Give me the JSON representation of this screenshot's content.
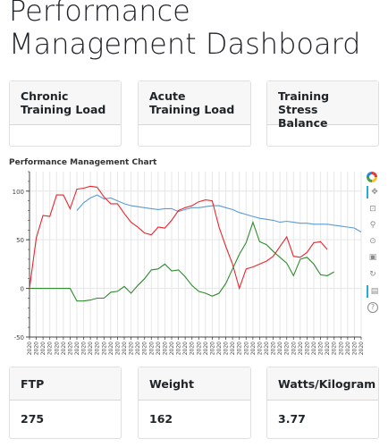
{
  "page": {
    "title": "Performance Management Dashboard"
  },
  "metrics_top": [
    {
      "label": "Chronic Training Load",
      "value": ""
    },
    {
      "label": "Acute Training Load",
      "value": ""
    },
    {
      "label": "Training Stress Balance",
      "value": ""
    }
  ],
  "metrics_bottom": [
    {
      "label": "FTP",
      "value": "275"
    },
    {
      "label": "Weight",
      "value": "162"
    },
    {
      "label": "Watts/Kilogram",
      "value": "3.77"
    }
  ],
  "chart": {
    "title": "Performance Management Chart"
  },
  "toolbar": {
    "tools": [
      {
        "name": "bokeh-logo-icon",
        "glyph": ""
      },
      {
        "name": "pan-tool-icon",
        "glyph": "✥"
      },
      {
        "name": "box-zoom-icon",
        "glyph": "⊡"
      },
      {
        "name": "lasso-icon",
        "glyph": "⚲"
      },
      {
        "name": "wheel-zoom-icon",
        "glyph": "⊙"
      },
      {
        "name": "save-icon",
        "glyph": "▣"
      },
      {
        "name": "reset-icon",
        "glyph": "↻"
      },
      {
        "name": "hover-icon",
        "glyph": "▤"
      },
      {
        "name": "help-icon",
        "glyph": "?"
      }
    ]
  },
  "colors": {
    "ctl": "#5b9bd5",
    "atl": "#e8262e",
    "tsb": "#2e8b2e"
  },
  "chart_data": {
    "type": "line",
    "title": "Performance Management Chart",
    "ylim": [
      -50,
      120
    ],
    "yticks": [
      -50,
      0,
      50,
      100
    ],
    "x_tick_label": "2020",
    "x": [
      0,
      1,
      2,
      3,
      4,
      5,
      6,
      7,
      8,
      9,
      10,
      11,
      12,
      13,
      14,
      15,
      16,
      17,
      18,
      19,
      20,
      21,
      22,
      23,
      24,
      25,
      26,
      27,
      28,
      29,
      30,
      31,
      32,
      33,
      34,
      35,
      36,
      37,
      38,
      39,
      40,
      41,
      42,
      43,
      44,
      45,
      46,
      47,
      48,
      49
    ],
    "series": [
      {
        "color": "#5b9bd5",
        "values": [
          null,
          null,
          null,
          null,
          null,
          null,
          null,
          80,
          88,
          93,
          96,
          92,
          93,
          90,
          87,
          85,
          84,
          83,
          82,
          81,
          82,
          82,
          79,
          81,
          83,
          83,
          84,
          85,
          85,
          83,
          81,
          78,
          76,
          74,
          72,
          71,
          70,
          68,
          69,
          68,
          67,
          67,
          66,
          66,
          66,
          65,
          64,
          63,
          62,
          58
        ]
      },
      {
        "color": "#e8262e",
        "values": [
          0,
          52,
          75,
          74,
          96,
          96,
          82,
          102,
          103,
          105,
          104,
          94,
          87,
          87,
          77,
          68,
          63,
          57,
          55,
          63,
          62,
          70,
          80,
          83,
          85,
          89,
          91,
          90,
          63,
          43,
          25,
          0,
          20,
          22,
          25,
          28,
          33,
          43,
          53,
          33,
          32,
          37,
          47,
          48,
          40,
          null,
          null,
          null,
          null,
          null
        ]
      },
      {
        "color": "#2e8b2e",
        "values": [
          0,
          0,
          0,
          0,
          0,
          0,
          0,
          -13,
          -13,
          -12,
          -10,
          -10,
          -4,
          -3,
          2,
          -5,
          3,
          10,
          19,
          20,
          25,
          18,
          19,
          12,
          3,
          -3,
          -5,
          -8,
          -5,
          5,
          20,
          35,
          47,
          68,
          48,
          45,
          38,
          32,
          26,
          13,
          30,
          32,
          25,
          14,
          13,
          17,
          null,
          null,
          null,
          null
        ]
      }
    ]
  }
}
